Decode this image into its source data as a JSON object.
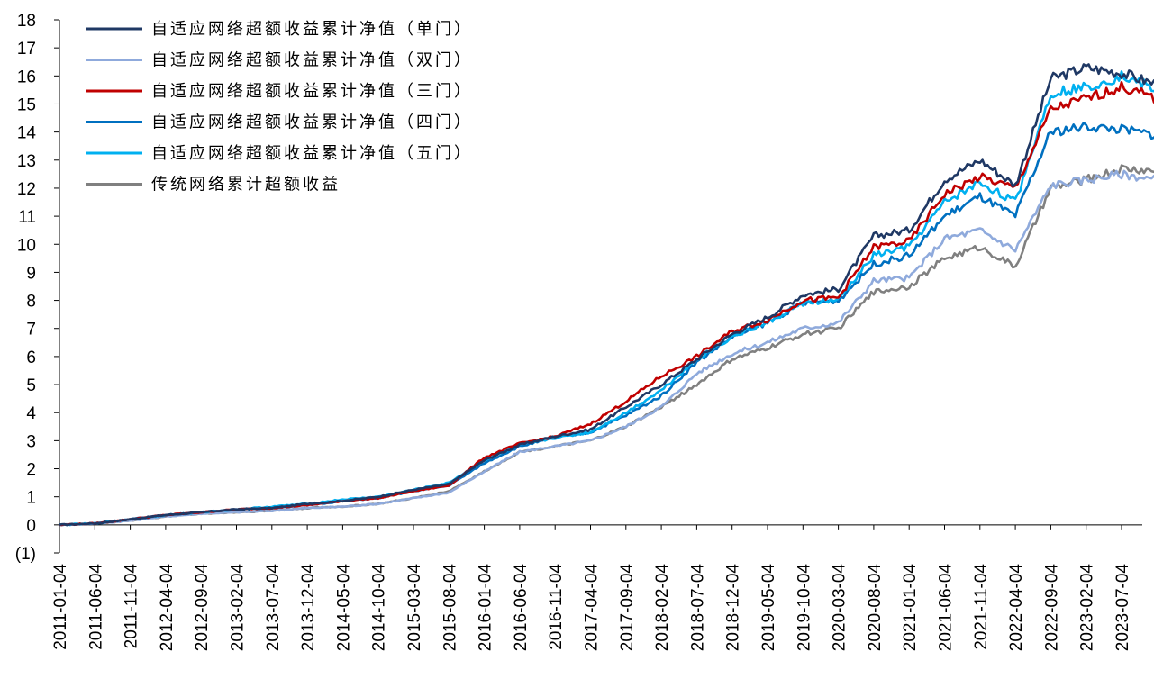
{
  "chart_data": {
    "type": "line",
    "title": "",
    "xlabel": "",
    "ylabel": "",
    "ylim": [
      -1,
      18
    ],
    "y_ticks": [
      -1,
      0,
      1,
      2,
      3,
      4,
      5,
      6,
      7,
      8,
      9,
      10,
      11,
      12,
      13,
      14,
      15,
      16,
      17,
      18
    ],
    "y_tick_labels": [
      "(1)",
      "0",
      "1",
      "2",
      "3",
      "4",
      "5",
      "6",
      "7",
      "8",
      "9",
      "10",
      "11",
      "12",
      "13",
      "14",
      "15",
      "16",
      "17",
      "18"
    ],
    "x_tick_labels": [
      "2011-01-04",
      "2011-06-04",
      "2011-11-04",
      "2012-04-04",
      "2012-09-04",
      "2013-02-04",
      "2013-07-04",
      "2013-12-04",
      "2014-05-04",
      "2014-10-04",
      "2015-03-04",
      "2015-08-04",
      "2016-01-04",
      "2016-06-04",
      "2016-11-04",
      "2017-04-04",
      "2017-09-04",
      "2018-02-04",
      "2018-07-04",
      "2018-12-04",
      "2019-05-04",
      "2019-10-04",
      "2020-03-04",
      "2020-08-04",
      "2021-01-04",
      "2021-06-04",
      "2021-11-04",
      "2022-04-04",
      "2022-09-04",
      "2023-02-04",
      "2023-07-04"
    ],
    "grid": false,
    "legend_position": "top-left",
    "x": [
      "2011-01-04",
      "2011-06-04",
      "2011-11-04",
      "2012-04-04",
      "2012-09-04",
      "2013-02-04",
      "2013-07-04",
      "2013-12-04",
      "2014-05-04",
      "2014-10-04",
      "2015-03-04",
      "2015-08-04",
      "2016-01-04",
      "2016-06-04",
      "2016-11-04",
      "2017-04-04",
      "2017-09-04",
      "2018-02-04",
      "2018-07-04",
      "2018-12-04",
      "2019-05-04",
      "2019-10-04",
      "2020-03-04",
      "2020-08-04",
      "2021-01-04",
      "2021-06-04",
      "2021-11-04",
      "2022-04-04",
      "2022-09-04",
      "2023-02-04",
      "2023-07-04",
      "2023-11-30"
    ],
    "series": [
      {
        "name": "自适应网络超额收益累计净值（单门）",
        "color": "#1f3864",
        "values": [
          0.0,
          0.05,
          0.2,
          0.35,
          0.45,
          0.55,
          0.6,
          0.75,
          0.85,
          1.0,
          1.25,
          1.45,
          2.3,
          2.85,
          3.15,
          3.4,
          4.2,
          5.0,
          5.9,
          6.8,
          7.4,
          8.2,
          8.4,
          10.3,
          10.5,
          12.3,
          13.0,
          12.1,
          15.9,
          16.3,
          16.1,
          15.7
        ]
      },
      {
        "name": "自适应网络超额收益累计净值（双门）",
        "color": "#8faadc",
        "values": [
          0.0,
          0.05,
          0.15,
          0.3,
          0.4,
          0.45,
          0.5,
          0.6,
          0.65,
          0.75,
          0.95,
          1.15,
          1.9,
          2.6,
          2.8,
          3.0,
          3.5,
          4.2,
          5.4,
          6.1,
          6.5,
          7.0,
          7.2,
          8.7,
          8.8,
          10.2,
          10.5,
          9.8,
          12.1,
          12.3,
          12.5,
          12.3
        ]
      },
      {
        "name": "自适应网络超额收益累计净值（三门）",
        "color": "#c00000",
        "values": [
          0.0,
          0.05,
          0.2,
          0.35,
          0.45,
          0.55,
          0.6,
          0.7,
          0.85,
          0.95,
          1.2,
          1.4,
          2.4,
          2.9,
          3.15,
          3.6,
          4.4,
          5.3,
          6.0,
          6.9,
          7.3,
          8.0,
          8.1,
          9.9,
          10.1,
          11.8,
          12.4,
          12.0,
          14.8,
          15.2,
          15.6,
          15.2
        ]
      },
      {
        "name": "自适应网络超额收益累计净值（四门）",
        "color": "#0070c0",
        "values": [
          0.0,
          0.05,
          0.2,
          0.35,
          0.45,
          0.55,
          0.6,
          0.7,
          0.85,
          0.95,
          1.2,
          1.4,
          2.2,
          2.8,
          3.1,
          3.3,
          3.9,
          4.6,
          5.8,
          6.7,
          7.2,
          7.9,
          8.0,
          9.3,
          9.6,
          11.0,
          11.7,
          11.0,
          14.0,
          14.2,
          14.1,
          13.9
        ]
      },
      {
        "name": "自适应网络超额收益累计净值（五门）",
        "color": "#00b0f0",
        "values": [
          0.0,
          0.05,
          0.2,
          0.35,
          0.45,
          0.55,
          0.65,
          0.75,
          0.9,
          1.0,
          1.25,
          1.5,
          2.3,
          2.85,
          3.1,
          3.3,
          4.0,
          4.8,
          5.9,
          6.7,
          7.2,
          7.9,
          8.0,
          9.6,
          9.9,
          11.5,
          12.2,
          11.5,
          15.4,
          15.6,
          16.0,
          15.5
        ]
      },
      {
        "name": "传统网络累计超额收益",
        "color": "#808080",
        "values": [
          0.0,
          0.05,
          0.15,
          0.3,
          0.4,
          0.45,
          0.5,
          0.6,
          0.65,
          0.75,
          0.95,
          1.2,
          1.9,
          2.6,
          2.8,
          3.0,
          3.5,
          4.2,
          5.0,
          5.9,
          6.3,
          6.8,
          7.0,
          8.3,
          8.5,
          9.5,
          9.9,
          9.2,
          12.0,
          12.3,
          12.7,
          12.6
        ]
      }
    ]
  }
}
